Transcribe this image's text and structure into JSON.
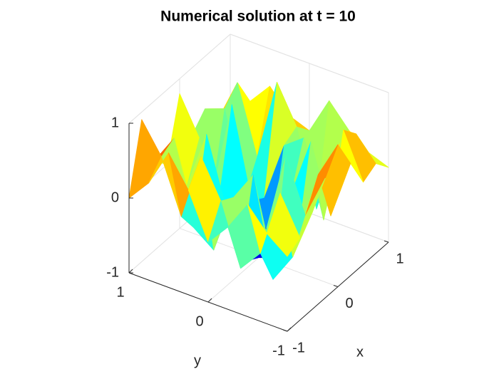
{
  "chart_data": {
    "type": "surface",
    "title": "Numerical solution at t = 10",
    "xlabel": "x",
    "ylabel": "y",
    "x": [
      -1,
      -0.75,
      -0.5,
      -0.25,
      0,
      0.25,
      0.5,
      0.75,
      1
    ],
    "y": [
      -1,
      -0.75,
      -0.5,
      -0.25,
      0,
      0.25,
      0.5,
      0.75,
      1
    ],
    "z": [
      [
        0.0,
        0.2,
        0.5,
        0.1,
        -0.2,
        0.4,
        0.8,
        0.3,
        0.0
      ],
      [
        0.1,
        0.6,
        -0.3,
        -0.6,
        0.2,
        0.7,
        -0.2,
        0.5,
        0.9
      ],
      [
        0.3,
        -0.4,
        -0.8,
        0.5,
        0.1,
        -0.7,
        -0.5,
        0.6,
        0.2
      ],
      [
        0.6,
        0.0,
        0.7,
        -0.4,
        -0.9,
        -0.3,
        0.6,
        -0.2,
        0.0
      ],
      [
        0.9,
        0.4,
        -0.5,
        -0.9,
        -1.0,
        -0.8,
        -0.4,
        0.3,
        0.8
      ],
      [
        0.5,
        -0.3,
        0.6,
        -0.2,
        -0.9,
        -0.5,
        0.7,
        -0.6,
        0.1
      ],
      [
        0.1,
        0.7,
        -0.6,
        0.4,
        0.2,
        -0.6,
        -0.7,
        0.4,
        0.3
      ],
      [
        0.2,
        0.5,
        0.2,
        -0.7,
        0.3,
        0.8,
        -0.3,
        0.6,
        0.0
      ],
      [
        0.0,
        0.1,
        0.3,
        0.6,
        0.1,
        0.2,
        0.5,
        0.2,
        0.0
      ]
    ],
    "colormap": "jet",
    "xlim": [
      -1,
      1
    ],
    "ylim": [
      -1,
      1
    ],
    "zlim": [
      -1,
      1
    ],
    "xticks": [
      -1,
      0,
      1
    ],
    "yticks": [
      -1,
      0,
      1
    ],
    "zticks": [
      -1,
      0,
      1
    ],
    "grid": true
  }
}
